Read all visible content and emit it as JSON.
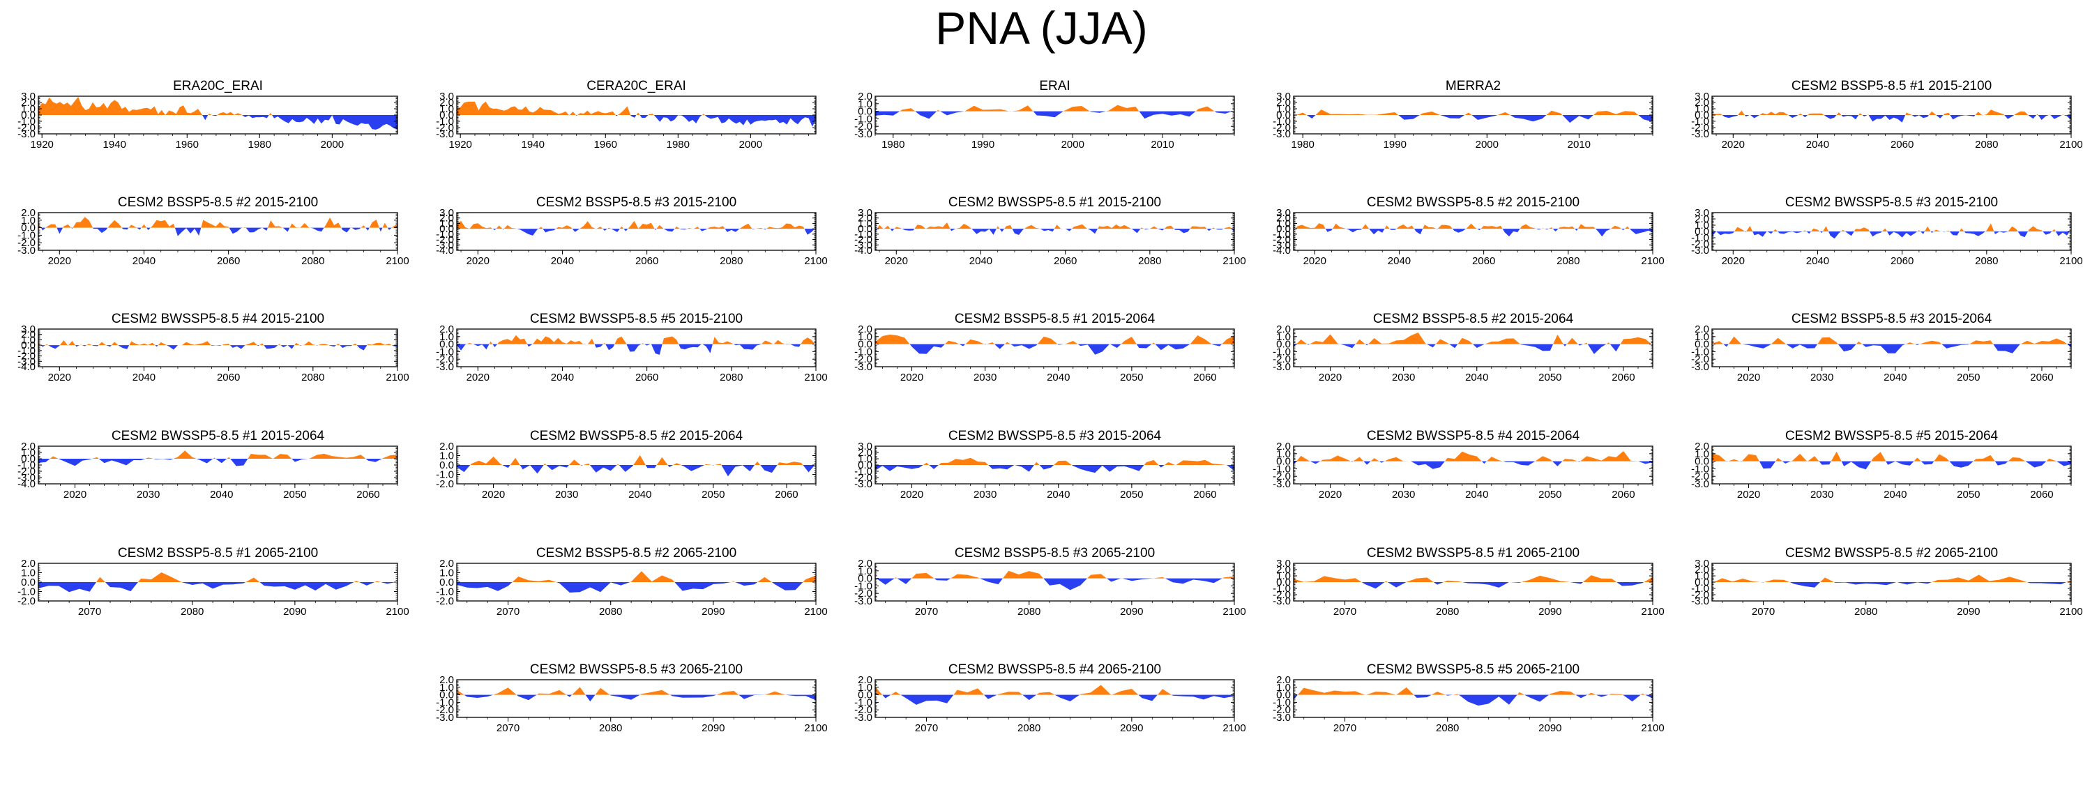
{
  "figure": {
    "title": "PNA (JJA)"
  },
  "colors": {
    "positive": "#ff7f0e",
    "negative": "#2a3ff0",
    "axis": "#000000"
  },
  "chart_data": [
    {
      "type": "area",
      "title": "ERA20C_ERAI",
      "xlim": [
        1919,
        2018
      ],
      "xticks": [
        1920,
        1940,
        1960,
        1980,
        2000
      ],
      "ylim": [
        -3,
        3
      ],
      "yticks": [
        -3,
        -2,
        -1,
        0,
        1,
        2,
        3
      ],
      "seed": 11,
      "bias": 1.4,
      "slope": -2.6,
      "amp": 0.9
    },
    {
      "type": "area",
      "title": "CERA20C_ERAI",
      "xlim": [
        1919,
        2018
      ],
      "xticks": [
        1920,
        1940,
        1960,
        1980,
        2000
      ],
      "ylim": [
        -3,
        3
      ],
      "yticks": [
        -3,
        -2,
        -1,
        0,
        1,
        2,
        3
      ],
      "seed": 12,
      "bias": 1.0,
      "slope": -2.0,
      "amp": 0.9
    },
    {
      "type": "area",
      "title": "ERAI",
      "xlim": [
        1978,
        2018
      ],
      "xticks": [
        1980,
        1990,
        2000,
        2010
      ],
      "ylim": [
        -3,
        2
      ],
      "yticks": [
        -3,
        -2,
        -1,
        0,
        1,
        2
      ],
      "seed": 13,
      "bias": 0,
      "slope": 0,
      "amp": 1.0
    },
    {
      "type": "area",
      "title": "MERRA2",
      "xlim": [
        1979,
        2018
      ],
      "xticks": [
        1980,
        1990,
        2000,
        2010
      ],
      "ylim": [
        -3,
        3
      ],
      "yticks": [
        -3,
        -2,
        -1,
        0,
        1,
        2,
        3
      ],
      "seed": 14,
      "bias": 0,
      "slope": 0,
      "amp": 1.0
    },
    {
      "type": "area",
      "title": "CESM2 BSSP5-8.5 #1 2015-2100",
      "xlim": [
        2015,
        2100
      ],
      "xticks": [
        2020,
        2040,
        2060,
        2080,
        2100
      ],
      "ylim": [
        -3,
        3
      ],
      "yticks": [
        -3,
        -2,
        -1,
        0,
        1,
        2,
        3
      ],
      "seed": 15,
      "bias": 0,
      "slope": 0,
      "amp": 0.8
    },
    {
      "type": "area",
      "title": "CESM2 BSSP5-8.5 #2 2015-2100",
      "xlim": [
        2015,
        2100
      ],
      "xticks": [
        2020,
        2040,
        2060,
        2080,
        2100
      ],
      "ylim": [
        -3,
        2
      ],
      "yticks": [
        -3,
        -2,
        -1,
        0,
        1,
        2
      ],
      "seed": 21,
      "bias": 0.1,
      "slope": 0,
      "amp": 1.0
    },
    {
      "type": "area",
      "title": "CESM2 BSSP5-8.5 #3 2015-2100",
      "xlim": [
        2015,
        2100
      ],
      "xticks": [
        2020,
        2040,
        2060,
        2080,
        2100
      ],
      "ylim": [
        -4,
        3
      ],
      "yticks": [
        -4,
        -3,
        -2,
        -1,
        0,
        1,
        2,
        3
      ],
      "seed": 22,
      "bias": 0,
      "slope": 0,
      "amp": 1.0
    },
    {
      "type": "area",
      "title": "CESM2 BWSSP5-8.5 #1 2015-2100",
      "xlim": [
        2015,
        2100
      ],
      "xticks": [
        2020,
        2040,
        2060,
        2080,
        2100
      ],
      "ylim": [
        -4,
        3
      ],
      "yticks": [
        -4,
        -3,
        -2,
        -1,
        0,
        1,
        2,
        3
      ],
      "seed": 23,
      "bias": 0,
      "slope": 0,
      "amp": 1.0
    },
    {
      "type": "area",
      "title": "CESM2 BWSSP5-8.5 #2 2015-2100",
      "xlim": [
        2015,
        2100
      ],
      "xticks": [
        2020,
        2040,
        2060,
        2080,
        2100
      ],
      "ylim": [
        -4,
        3
      ],
      "yticks": [
        -4,
        -3,
        -2,
        -1,
        0,
        1,
        2,
        3
      ],
      "seed": 24,
      "bias": 0,
      "slope": 0,
      "amp": 1.0
    },
    {
      "type": "area",
      "title": "CESM2 BWSSP5-8.5 #3 2015-2100",
      "xlim": [
        2015,
        2100
      ],
      "xticks": [
        2020,
        2040,
        2060,
        2080,
        2100
      ],
      "ylim": [
        -3,
        3
      ],
      "yticks": [
        -3,
        -2,
        -1,
        0,
        1,
        2,
        3
      ],
      "seed": 25,
      "bias": 0,
      "slope": 0,
      "amp": 0.9
    },
    {
      "type": "area",
      "title": "CESM2 BWSSP5-8.5 #4 2015-2100",
      "xlim": [
        2015,
        2100
      ],
      "xticks": [
        2020,
        2040,
        2060,
        2080,
        2100
      ],
      "ylim": [
        -4,
        3
      ],
      "yticks": [
        -4,
        -3,
        -2,
        -1,
        0,
        1,
        2,
        3
      ],
      "seed": 31,
      "bias": 0,
      "slope": 0,
      "amp": 0.8
    },
    {
      "type": "area",
      "title": "CESM2 BWSSP5-8.5 #5 2015-2100",
      "xlim": [
        2015,
        2100
      ],
      "xticks": [
        2020,
        2040,
        2060,
        2080,
        2100
      ],
      "ylim": [
        -3,
        2
      ],
      "yticks": [
        -3,
        -2,
        -1,
        0,
        1,
        2
      ],
      "seed": 32,
      "bias": 0,
      "slope": 0,
      "amp": 1.0
    },
    {
      "type": "area",
      "title": "CESM2 BSSP5-8.5 #1 2015-2064",
      "xlim": [
        2015,
        2064
      ],
      "xticks": [
        2020,
        2030,
        2040,
        2050,
        2060
      ],
      "ylim": [
        -3,
        2
      ],
      "yticks": [
        -3,
        -2,
        -1,
        0,
        1,
        2
      ],
      "seed": 33,
      "bias": 0,
      "slope": 0,
      "amp": 1.0
    },
    {
      "type": "area",
      "title": "CESM2 BSSP5-8.5 #2 2015-2064",
      "xlim": [
        2015,
        2064
      ],
      "xticks": [
        2020,
        2030,
        2040,
        2050,
        2060
      ],
      "ylim": [
        -3,
        2
      ],
      "yticks": [
        -3,
        -2,
        -1,
        0,
        1,
        2
      ],
      "seed": 34,
      "bias": 0,
      "slope": 0,
      "amp": 1.0
    },
    {
      "type": "area",
      "title": "CESM2 BSSP5-8.5 #3 2015-2064",
      "xlim": [
        2015,
        2064
      ],
      "xticks": [
        2020,
        2030,
        2040,
        2050,
        2060
      ],
      "ylim": [
        -3,
        2
      ],
      "yticks": [
        -3,
        -2,
        -1,
        0,
        1,
        2
      ],
      "seed": 35,
      "bias": 0,
      "slope": 0,
      "amp": 1.0
    },
    {
      "type": "area",
      "title": "CESM2 BWSSP5-8.5 #1 2015-2064",
      "xlim": [
        2015,
        2064
      ],
      "xticks": [
        2020,
        2030,
        2040,
        2050,
        2060
      ],
      "ylim": [
        -4,
        2
      ],
      "yticks": [
        -4,
        -3,
        -2,
        -1,
        0,
        1,
        2
      ],
      "seed": 41,
      "bias": 0,
      "slope": 0,
      "amp": 1.0
    },
    {
      "type": "area",
      "title": "CESM2 BWSSP5-8.5 #2 2015-2064",
      "xlim": [
        2015,
        2064
      ],
      "xticks": [
        2020,
        2030,
        2040,
        2050,
        2060
      ],
      "ylim": [
        -2,
        2
      ],
      "yticks": [
        -2,
        -1,
        0,
        1,
        2
      ],
      "seed": 42,
      "bias": 0,
      "slope": 0,
      "amp": 1.0
    },
    {
      "type": "area",
      "title": "CESM2 BWSSP5-8.5 #3 2015-2064",
      "xlim": [
        2015,
        2064
      ],
      "xticks": [
        2020,
        2030,
        2040,
        2050,
        2060
      ],
      "ylim": [
        -3,
        3
      ],
      "yticks": [
        -3,
        -2,
        -1,
        0,
        1,
        2,
        3
      ],
      "seed": 43,
      "bias": 0,
      "slope": 0,
      "amp": 1.0
    },
    {
      "type": "area",
      "title": "CESM2 BWSSP5-8.5 #4 2015-2064",
      "xlim": [
        2015,
        2064
      ],
      "xticks": [
        2020,
        2030,
        2040,
        2050,
        2060
      ],
      "ylim": [
        -3,
        2
      ],
      "yticks": [
        -3,
        -2,
        -1,
        0,
        1,
        2
      ],
      "seed": 44,
      "bias": 0,
      "slope": 0,
      "amp": 1.0
    },
    {
      "type": "area",
      "title": "CESM2 BWSSP5-8.5 #5 2015-2064",
      "xlim": [
        2015,
        2064
      ],
      "xticks": [
        2020,
        2030,
        2040,
        2050,
        2060
      ],
      "ylim": [
        -3,
        2
      ],
      "yticks": [
        -3,
        -2,
        -1,
        0,
        1,
        2
      ],
      "seed": 45,
      "bias": 0,
      "slope": 0,
      "amp": 1.0
    },
    {
      "type": "area",
      "title": "CESM2 BSSP5-8.5 #1 2065-2100",
      "xlim": [
        2065,
        2100
      ],
      "xticks": [
        2070,
        2080,
        2090,
        2100
      ],
      "ylim": [
        -2,
        2
      ],
      "yticks": [
        -2,
        -1,
        0,
        1,
        2
      ],
      "seed": 51,
      "bias": 0,
      "slope": 0,
      "amp": 0.9
    },
    {
      "type": "area",
      "title": "CESM2 BSSP5-8.5 #2 2065-2100",
      "xlim": [
        2065,
        2100
      ],
      "xticks": [
        2070,
        2080,
        2090,
        2100
      ],
      "ylim": [
        -2,
        2
      ],
      "yticks": [
        -2,
        -1,
        0,
        1,
        2
      ],
      "seed": 52,
      "bias": 0,
      "slope": 0,
      "amp": 0.9
    },
    {
      "type": "area",
      "title": "CESM2 BSSP5-8.5 #3 2065-2100",
      "xlim": [
        2065,
        2100
      ],
      "xticks": [
        2070,
        2080,
        2090,
        2100
      ],
      "ylim": [
        -3,
        2
      ],
      "yticks": [
        -3,
        -2,
        -1,
        0,
        1,
        2
      ],
      "seed": 53,
      "bias": 0,
      "slope": 0,
      "amp": 1.0
    },
    {
      "type": "area",
      "title": "CESM2 BWSSP5-8.5 #1 2065-2100",
      "xlim": [
        2065,
        2100
      ],
      "xticks": [
        2070,
        2080,
        2090,
        2100
      ],
      "ylim": [
        -3,
        3
      ],
      "yticks": [
        -3,
        -2,
        -1,
        0,
        1,
        2,
        3
      ],
      "seed": 54,
      "bias": 0,
      "slope": 0,
      "amp": 1.0
    },
    {
      "type": "area",
      "title": "CESM2 BWSSP5-8.5 #2 2065-2100",
      "xlim": [
        2065,
        2100
      ],
      "xticks": [
        2070,
        2080,
        2090,
        2100
      ],
      "ylim": [
        -3,
        3
      ],
      "yticks": [
        -3,
        -2,
        -1,
        0,
        1,
        2,
        3
      ],
      "seed": 55,
      "bias": 0,
      "slope": 0,
      "amp": 1.0
    },
    {
      "type": "area",
      "title": "CESM2 BWSSP5-8.5 #3 2065-2100",
      "xlim": [
        2065,
        2100
      ],
      "xticks": [
        2070,
        2080,
        2090,
        2100
      ],
      "ylim": [
        -3,
        2
      ],
      "yticks": [
        -3,
        -2,
        -1,
        0,
        1,
        2
      ],
      "seed": 62,
      "bias": 0,
      "slope": 0,
      "amp": 1.0
    },
    {
      "type": "area",
      "title": "CESM2 BWSSP5-8.5 #4 2065-2100",
      "xlim": [
        2065,
        2100
      ],
      "xticks": [
        2070,
        2080,
        2090,
        2100
      ],
      "ylim": [
        -3,
        2
      ],
      "yticks": [
        -3,
        -2,
        -1,
        0,
        1,
        2
      ],
      "seed": 63,
      "bias": 0,
      "slope": 0,
      "amp": 1.0
    },
    {
      "type": "area",
      "title": "CESM2 BWSSP5-8.5 #5 2065-2100",
      "xlim": [
        2065,
        2100
      ],
      "xticks": [
        2070,
        2080,
        2090,
        2100
      ],
      "ylim": [
        -3,
        2
      ],
      "yticks": [
        -3,
        -2,
        -1,
        0,
        1,
        2
      ],
      "seed": 64,
      "bias": 0,
      "slope": 0,
      "amp": 1.0
    }
  ]
}
